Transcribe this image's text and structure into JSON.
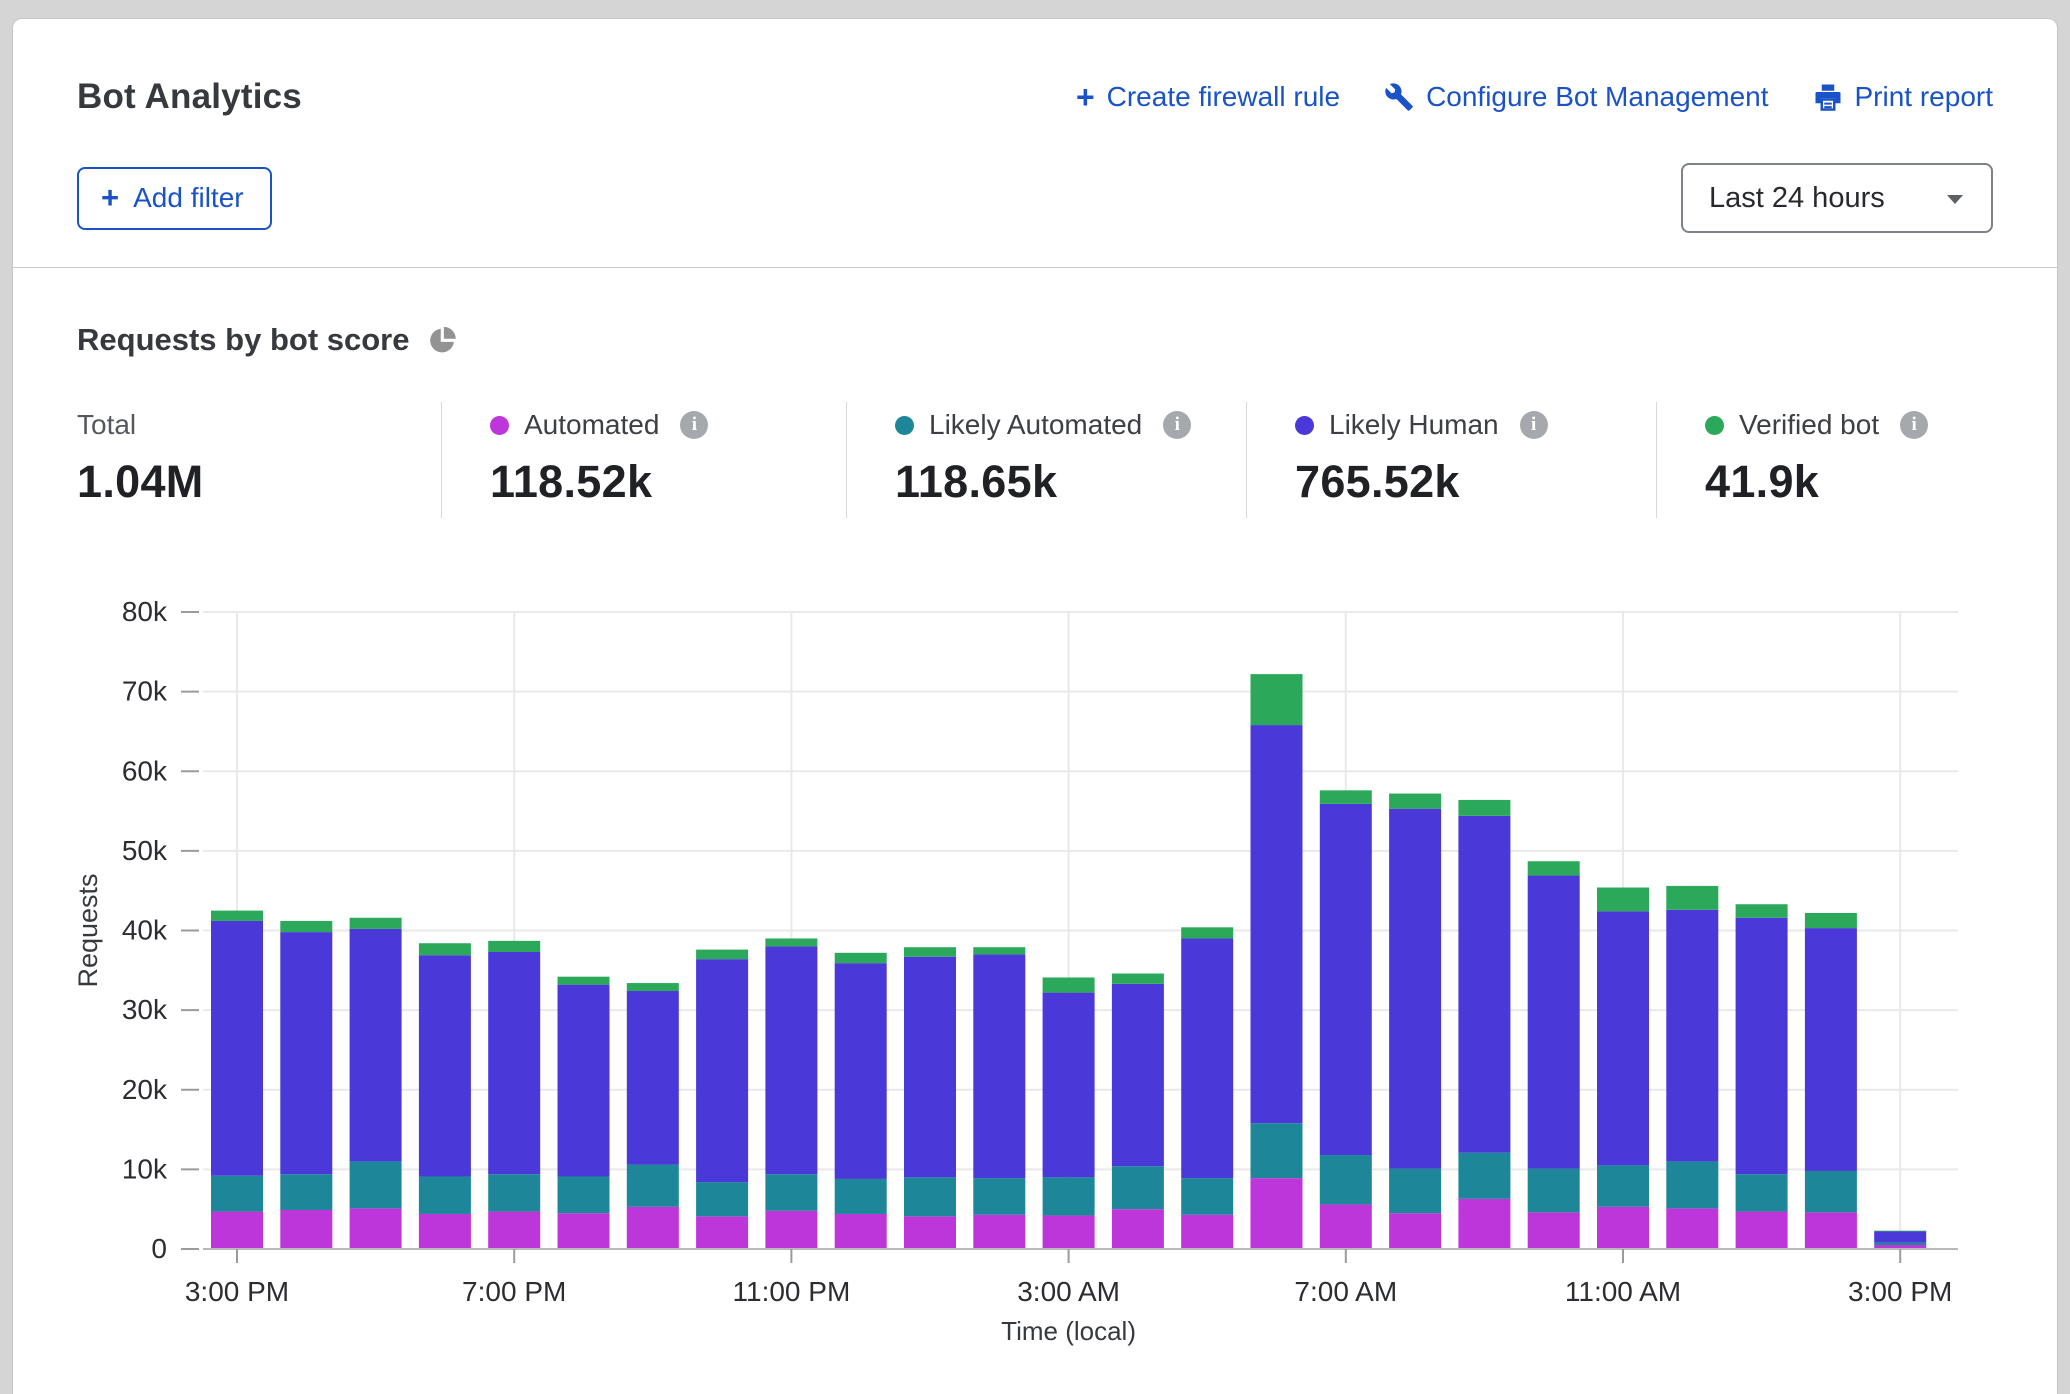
{
  "header": {
    "title": "Bot Analytics",
    "actions": [
      {
        "id": "create-firewall-rule",
        "label": "Create firewall rule"
      },
      {
        "id": "configure-bot-management",
        "label": "Configure Bot Management"
      },
      {
        "id": "print-report",
        "label": "Print report"
      }
    ],
    "add_filter_label": "Add filter",
    "time_range_value": "Last 24 hours"
  },
  "icons": {
    "plus_glyph": "+",
    "info_glyph": "i"
  },
  "section": {
    "title": "Requests by bot score",
    "stats": [
      {
        "label": "Total",
        "value": "1.04M",
        "color": null
      },
      {
        "label": "Automated",
        "value": "118.52k",
        "color": "#bd36d9"
      },
      {
        "label": "Likely Automated",
        "value": "118.65k",
        "color": "#1d8799"
      },
      {
        "label": "Likely Human",
        "value": "765.52k",
        "color": "#4a39d8"
      },
      {
        "label": "Verified bot",
        "value": "41.9k",
        "color": "#2ca85b"
      }
    ]
  },
  "chart_data": {
    "type": "bar",
    "stacked": true,
    "title": "Requests by bot score",
    "xlabel": "Time (local)",
    "ylabel": "Requests",
    "ylim": [
      0,
      80000
    ],
    "grid": true,
    "y_ticks": [
      {
        "value": 0,
        "label": "0"
      },
      {
        "value": 10000,
        "label": "10k"
      },
      {
        "value": 20000,
        "label": "20k"
      },
      {
        "value": 30000,
        "label": "30k"
      },
      {
        "value": 40000,
        "label": "40k"
      },
      {
        "value": 50000,
        "label": "50k"
      },
      {
        "value": 60000,
        "label": "60k"
      },
      {
        "value": 70000,
        "label": "70k"
      },
      {
        "value": 80000,
        "label": "80k"
      }
    ],
    "x_tick_indices": [
      0,
      4,
      8,
      12,
      16,
      20,
      24
    ],
    "x_tick_labels": [
      "3:00 PM",
      "7:00 PM",
      "11:00 PM",
      "3:00 AM",
      "7:00 AM",
      "11:00 AM",
      "3:00 PM"
    ],
    "categories": [
      "3:00 PM",
      "4:00 PM",
      "5:00 PM",
      "6:00 PM",
      "7:00 PM",
      "8:00 PM",
      "9:00 PM",
      "10:00 PM",
      "11:00 PM",
      "12:00 AM",
      "1:00 AM",
      "2:00 AM",
      "3:00 AM",
      "4:00 AM",
      "5:00 AM",
      "6:00 AM",
      "7:00 AM",
      "8:00 AM",
      "9:00 AM",
      "10:00 AM",
      "11:00 AM",
      "12:00 PM",
      "1:00 PM",
      "2:00 PM",
      "3:00 PM"
    ],
    "series": [
      {
        "name": "Automated",
        "color": "#bd36d9",
        "values": [
          4700,
          4900,
          5100,
          4400,
          4700,
          4500,
          5300,
          4100,
          4800,
          4400,
          4100,
          4300,
          4200,
          5000,
          4300,
          8900,
          5600,
          4500,
          6300,
          4600,
          5300,
          5100,
          4700,
          4600,
          500
        ]
      },
      {
        "name": "Likely Automated",
        "color": "#1d8799",
        "values": [
          4500,
          4500,
          5900,
          4700,
          4700,
          4600,
          5300,
          4300,
          4600,
          4400,
          4900,
          4600,
          4800,
          5400,
          4600,
          6900,
          6200,
          5600,
          5800,
          5500,
          5200,
          5900,
          4700,
          5200,
          300
        ]
      },
      {
        "name": "Likely Human",
        "color": "#4a39d8",
        "values": [
          32000,
          30400,
          29200,
          27800,
          27900,
          24100,
          21800,
          28000,
          28600,
          27100,
          27700,
          28100,
          23200,
          22900,
          30100,
          50000,
          44100,
          45200,
          42300,
          36800,
          31900,
          31600,
          32200,
          30500,
          1400
        ]
      },
      {
        "name": "Verified bot",
        "color": "#2ca85b",
        "values": [
          1300,
          1400,
          1400,
          1500,
          1400,
          1000,
          1000,
          1200,
          1000,
          1300,
          1200,
          900,
          1900,
          1300,
          1400,
          6400,
          1700,
          1900,
          2000,
          1800,
          3000,
          3000,
          1700,
          1900,
          100
        ]
      }
    ]
  }
}
